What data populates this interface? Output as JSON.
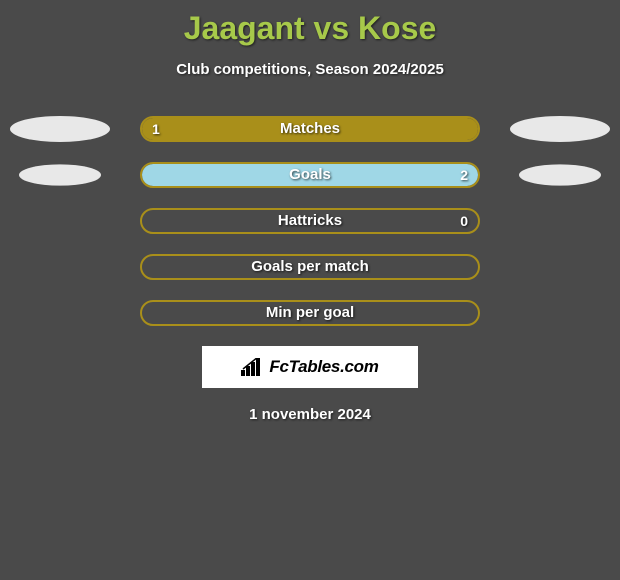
{
  "title": "Jaagant vs Kose",
  "subtitle": "Club competitions, Season 2024/2025",
  "brand": "FcTables.com",
  "date": "1 november 2024",
  "colors": {
    "title": "#a7c94a",
    "bg": "#4a4a4a",
    "bar_border": "#a98f1a",
    "left_fill": "#a98f1a",
    "right_fill": "#9fd7e6",
    "ellipse_left": "#e8e8e8",
    "ellipse_right": "#e8e8e8"
  },
  "stats": [
    {
      "label": "Matches",
      "left_val": "1",
      "right_val": "",
      "left_pct": 100,
      "right_pct": 0,
      "show_ellipses": true,
      "ellipse_scale": 1.0
    },
    {
      "label": "Goals",
      "left_val": "",
      "right_val": "2",
      "left_pct": 0,
      "right_pct": 100,
      "show_ellipses": true,
      "ellipse_scale": 0.82
    },
    {
      "label": "Hattricks",
      "left_val": "",
      "right_val": "0",
      "left_pct": 0,
      "right_pct": 0,
      "show_ellipses": false
    },
    {
      "label": "Goals per match",
      "left_val": "",
      "right_val": "",
      "left_pct": 0,
      "right_pct": 0,
      "show_ellipses": false
    },
    {
      "label": "Min per goal",
      "left_val": "",
      "right_val": "",
      "left_pct": 0,
      "right_pct": 0,
      "show_ellipses": false
    }
  ]
}
